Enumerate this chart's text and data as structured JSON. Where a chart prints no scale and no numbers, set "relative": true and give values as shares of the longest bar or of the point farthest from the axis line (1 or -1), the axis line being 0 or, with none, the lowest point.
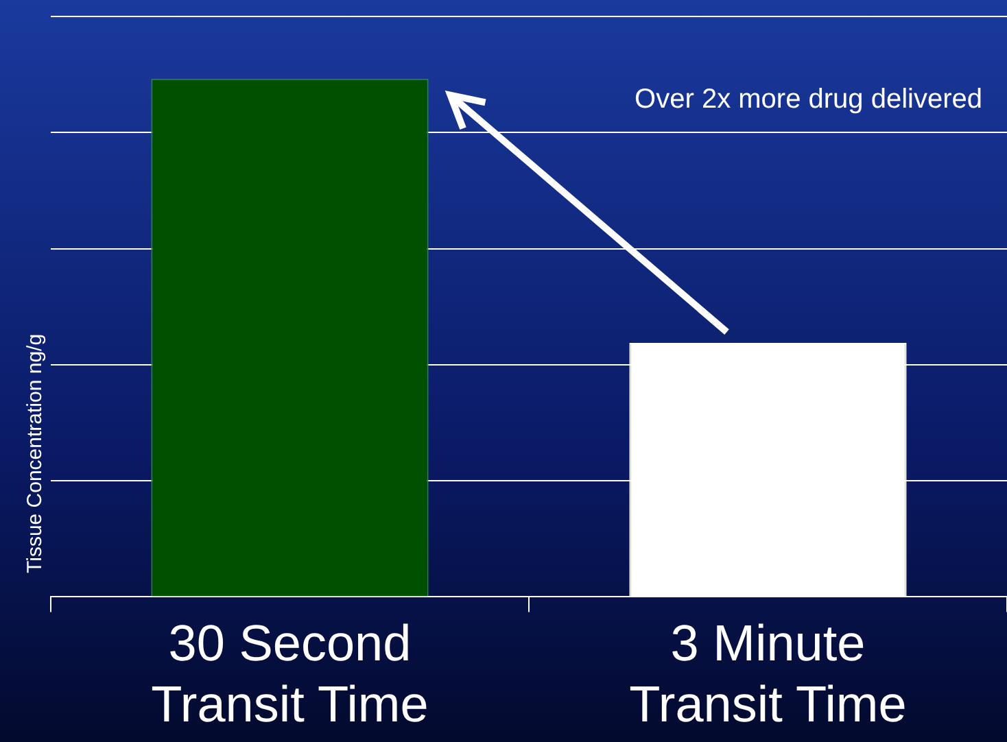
{
  "chart_data": {
    "type": "bar",
    "relative": true,
    "ylabel": "Tissue Concentration ng/g",
    "categories": [
      "30 Second\nTransit Time",
      "3 Minute\nTransit Time"
    ],
    "values": [
      1,
      0.49
    ],
    "colors": [
      "#005000",
      "#ffffff"
    ],
    "grid": "y",
    "annotations": [
      "Over 2x more drug delivered"
    ]
  }
}
